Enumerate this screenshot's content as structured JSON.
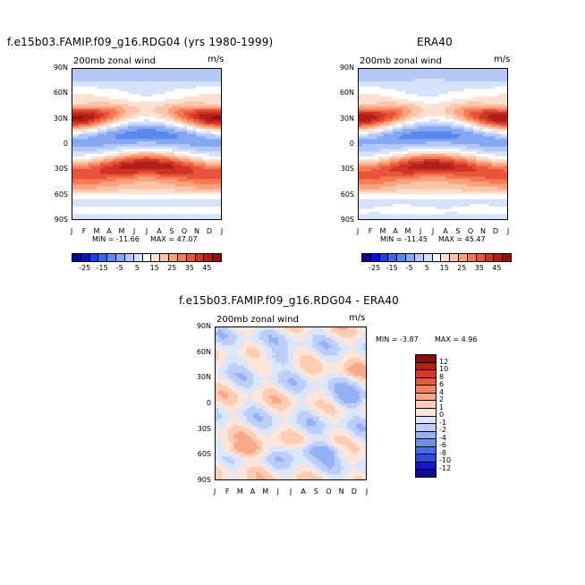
{
  "panels": [
    {
      "title": "f.e15b03.FAMIP.f09_g16.RDG04 (yrs 1980-1999)",
      "subtitle": "200mb zonal wind",
      "units": "m/s",
      "min_label": "MIN = -11.66",
      "max_label": "MAX = 47.07"
    },
    {
      "title": "ERA40",
      "subtitle": "200mb zonal wind",
      "units": "m/s",
      "min_label": "MIN = -11.45",
      "max_label": "MAX = 45.47"
    },
    {
      "title": "f.e15b03.FAMIP.f09_g16.RDG04 - ERA40",
      "subtitle": "200mb zonal wind",
      "units": "m/s",
      "min_label": "MIN = -3.87",
      "max_label": "MAX = 4.96"
    }
  ],
  "colors": {
    "abs_scale": [
      "#08088e",
      "#1010c8",
      "#1f3fe0",
      "#3a66ea",
      "#5b88ef",
      "#86a8f3",
      "#b4c8f8",
      "#d6e2fb",
      "#ffffff",
      "#fde0d2",
      "#fcc4a8",
      "#f9a27e",
      "#f47a55",
      "#e8553a",
      "#cf3526",
      "#b01f1c",
      "#8e1010"
    ],
    "diff_scale": [
      "#0c0c8e",
      "#1818c8",
      "#2e4be0",
      "#4a6ee9",
      "#6f8fef",
      "#96b0f4",
      "#bccdf8",
      "#dbe5fb",
      "#fde6d9",
      "#fccbb4",
      "#f8a98c",
      "#f18266",
      "#e65a42",
      "#d13a29",
      "#b32018",
      "#8c0c0c"
    ]
  },
  "chart_data": [
    {
      "type": "heatmap",
      "title": "f.e15b03.FAMIP.f09_g16.RDG04 (yrs 1980-1999)",
      "subtitle": "200mb zonal wind",
      "units": "m/s",
      "x_ticks": [
        "J",
        "F",
        "M",
        "A",
        "M",
        "J",
        "J",
        "A",
        "S",
        "O",
        "N",
        "D",
        "J"
      ],
      "y_ticks": [
        "90N",
        "60N",
        "30N",
        "0",
        "30S",
        "60S",
        "90S"
      ],
      "ylim": [
        -90,
        90
      ],
      "min": -11.66,
      "max": 47.07,
      "colorbar_levels": [
        -25,
        -15,
        -5,
        5,
        15,
        25,
        35,
        45
      ],
      "colorbar_labels": [
        "-25",
        "-15",
        "-5",
        "5",
        "15",
        "25",
        "35",
        "45"
      ]
    },
    {
      "type": "heatmap",
      "title": "ERA40",
      "subtitle": "200mb zonal wind",
      "units": "m/s",
      "x_ticks": [
        "J",
        "F",
        "M",
        "A",
        "M",
        "J",
        "J",
        "A",
        "S",
        "O",
        "N",
        "D",
        "J"
      ],
      "y_ticks": [
        "90N",
        "60N",
        "30N",
        "0",
        "30S",
        "60S",
        "90S"
      ],
      "ylim": [
        -90,
        90
      ],
      "min": -11.45,
      "max": 45.47,
      "colorbar_levels": [
        -25,
        -15,
        -5,
        5,
        15,
        25,
        35,
        45
      ],
      "colorbar_labels": [
        "-25",
        "-15",
        "-5",
        "5",
        "15",
        "25",
        "35",
        "45"
      ]
    },
    {
      "type": "heatmap",
      "title": "f.e15b03.FAMIP.f09_g16.RDG04 - ERA40",
      "subtitle": "200mb zonal wind",
      "units": "m/s",
      "x_ticks": [
        "J",
        "F",
        "M",
        "A",
        "M",
        "J",
        "J",
        "A",
        "S",
        "O",
        "N",
        "D",
        "J"
      ],
      "y_ticks": [
        "90N",
        "60N",
        "30N",
        "0",
        "30S",
        "60S",
        "90S"
      ],
      "ylim": [
        -90,
        90
      ],
      "min": -3.87,
      "max": 4.96,
      "colorbar_levels": [
        -12,
        -10,
        -8,
        -6,
        -4,
        -2,
        -1,
        0,
        1,
        2,
        4,
        6,
        8,
        10,
        12
      ],
      "colorbar_labels": [
        "-12",
        "-10",
        "-8",
        "-6",
        "-4",
        "-2",
        "-1",
        "0",
        "1",
        "2",
        "4",
        "6",
        "8",
        "10",
        "12"
      ]
    }
  ]
}
